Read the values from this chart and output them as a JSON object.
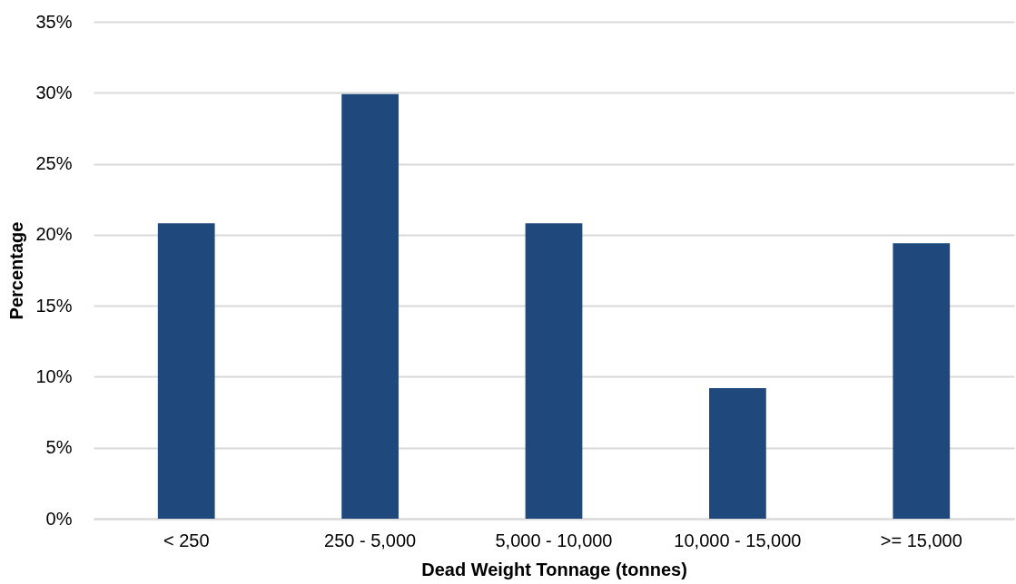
{
  "chart_data": {
    "type": "bar",
    "xlabel": "Dead Weight Tonnage (tonnes)",
    "ylabel": "Percentage",
    "categories": [
      "< 250",
      "250 - 5,000",
      "5,000 - 10,000",
      "10,000 - 15,000",
      ">= 15,000"
    ],
    "values": [
      20.8,
      29.9,
      20.8,
      9.2,
      19.4
    ],
    "color": "#1f497d",
    "ylim": [
      0,
      35
    ],
    "yticks": [
      {
        "value": 0,
        "label": "0%"
      },
      {
        "value": 5,
        "label": "5%"
      },
      {
        "value": 10,
        "label": "10%"
      },
      {
        "value": 15,
        "label": "15%"
      },
      {
        "value": 20,
        "label": "20%"
      },
      {
        "value": 25,
        "label": "25%"
      },
      {
        "value": 30,
        "label": "30%"
      },
      {
        "value": 35,
        "label": "35%"
      }
    ],
    "grid": "y"
  }
}
